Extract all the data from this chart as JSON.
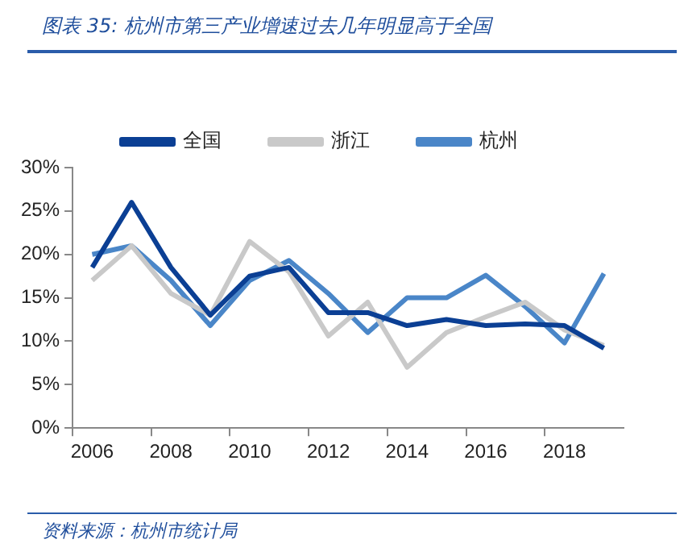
{
  "chart_data": {
    "type": "line",
    "title": "图表 35:   杭州市第三产业增速过去几年明显高于全国",
    "categories": [
      "2006",
      null,
      "2008",
      null,
      "2010",
      null,
      "2012",
      null,
      "2014",
      null,
      "2016",
      null,
      "2018",
      null
    ],
    "series": [
      {
        "name": "全国",
        "color": "#0b3f94",
        "values": [
          18.5,
          26.0,
          18.5,
          13.0,
          17.5,
          18.5,
          13.3,
          13.3,
          11.8,
          12.5,
          11.8,
          12.0,
          11.8,
          9.2
        ]
      },
      {
        "name": "浙江",
        "color": "#c9c9c9",
        "values": [
          17.0,
          21.0,
          15.5,
          13.0,
          21.5,
          18.0,
          10.6,
          14.5,
          7.0,
          11.0,
          12.8,
          14.5,
          11.3,
          9.5
        ]
      },
      {
        "name": "杭州",
        "color": "#4a86c8",
        "values": [
          20.0,
          21.0,
          17.0,
          11.8,
          17.0,
          19.3,
          15.5,
          11.0,
          15.0,
          15.0,
          17.6,
          14.0,
          9.8,
          17.8
        ]
      }
    ],
    "ylim": [
      0,
      30
    ],
    "yticks": [
      {
        "value": 0,
        "label": "0%"
      },
      {
        "value": 5,
        "label": "5%"
      },
      {
        "value": 10,
        "label": "10%"
      },
      {
        "value": 15,
        "label": "15%"
      },
      {
        "value": 20,
        "label": "20%"
      },
      {
        "value": 25,
        "label": "25%"
      },
      {
        "value": 30,
        "label": "30%"
      }
    ],
    "grid": false,
    "legend": "top",
    "marker": "none",
    "line_style": "solid",
    "annotations": [
      "资料来源：杭州市统计局"
    ]
  }
}
